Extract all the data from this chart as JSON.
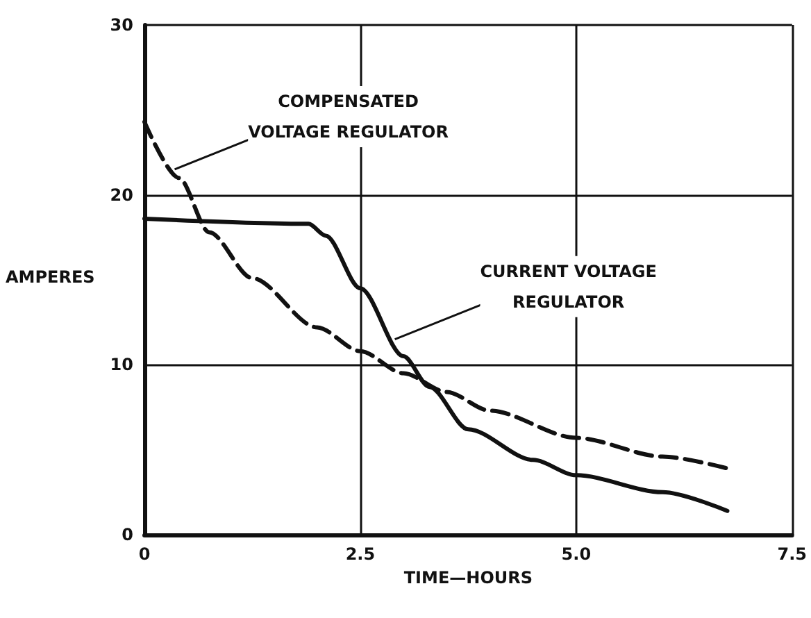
{
  "chart_data": {
    "type": "line",
    "xlabel": "TIME—HOURS",
    "ylabel": "AMPERES",
    "xlim": [
      0,
      7.5
    ],
    "ylim": [
      0,
      30
    ],
    "xticks": [
      0,
      2.5,
      {
        "value": 5,
        "label": "5.0"
      },
      7.5
    ],
    "yticks": [
      0,
      10,
      20,
      30
    ],
    "grid": true,
    "marker": "none",
    "series": [
      {
        "color": "#111111",
        "line_style": "solid",
        "x": [
          0,
          1.9,
          2.1,
          2.5,
          3.0,
          3.3,
          3.75,
          4.5,
          5.0,
          6.0,
          6.75
        ],
        "values": [
          18.6,
          18.3,
          17.6,
          14.5,
          10.5,
          8.7,
          6.2,
          4.4,
          3.5,
          2.5,
          1.4
        ]
      },
      {
        "color": "#111111",
        "line_style": "dashed",
        "x": [
          0,
          0.4,
          0.75,
          1.25,
          2.0,
          2.5,
          3.0,
          3.5,
          4.0,
          5.0,
          6.0,
          6.75
        ],
        "values": [
          24.3,
          21.0,
          17.8,
          15.1,
          12.2,
          10.8,
          9.5,
          8.4,
          7.3,
          5.7,
          4.6,
          3.9
        ]
      }
    ],
    "annotations": [
      {
        "text": "COMPENSATED\nVOLTAGE REGULATOR",
        "x": 0.35,
        "y": 21.5
      },
      {
        "text": "CURRENT VOLTAGE\nREGULATOR",
        "x": 2.9,
        "y": 11.5
      }
    ]
  }
}
